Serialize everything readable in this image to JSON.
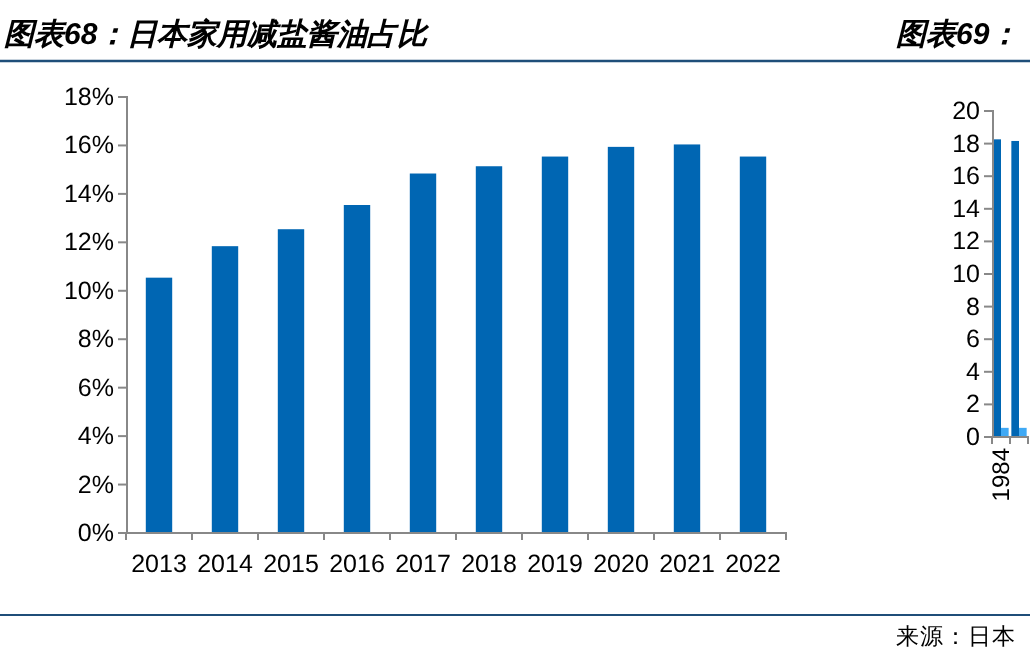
{
  "chart_data": [
    {
      "type": "bar",
      "title": "图表68：日本家用减盐酱油占比",
      "categories": [
        "2013",
        "2014",
        "2015",
        "2016",
        "2017",
        "2018",
        "2019",
        "2020",
        "2021",
        "2022"
      ],
      "values": [
        10.5,
        11.8,
        12.5,
        13.5,
        14.8,
        15.1,
        15.5,
        15.9,
        16.0,
        15.5
      ],
      "color": "#0066b3",
      "ylim": [
        0,
        18
      ],
      "yticks": [
        {
          "value": 0,
          "label": "0%"
        },
        {
          "value": 2,
          "label": "2%"
        },
        {
          "value": 4,
          "label": "4%"
        },
        {
          "value": 6,
          "label": "6%"
        },
        {
          "value": 8,
          "label": "8%"
        },
        {
          "value": 10,
          "label": "10%"
        },
        {
          "value": 12,
          "label": "12%"
        },
        {
          "value": 14,
          "label": "14%"
        },
        {
          "value": 16,
          "label": "16%"
        },
        {
          "value": 18,
          "label": "18%"
        }
      ],
      "grid": false
    },
    {
      "type": "bar",
      "title": "图表69：",
      "categories": [
        "1984",
        null
      ],
      "series": [
        {
          "color": "#0066b3",
          "values": [
            18.2,
            18.1
          ]
        },
        {
          "color": "#3fa9f5",
          "values": [
            0.5,
            0.5
          ]
        }
      ],
      "ylim": [
        0,
        20
      ],
      "yticks": [
        0,
        2,
        4,
        6,
        8,
        10,
        12,
        14,
        16,
        18,
        20
      ],
      "grid": false,
      "annotations": [
        "来源：日本"
      ]
    }
  ]
}
